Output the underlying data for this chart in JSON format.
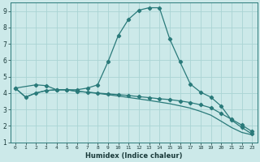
{
  "xlabel": "Humidex (Indice chaleur)",
  "bg_color": "#cce9e9",
  "grid_color": "#aad4d4",
  "line_color": "#2a7a7a",
  "xlim": [
    -0.5,
    23.5
  ],
  "ylim": [
    1,
    9.5
  ],
  "yticks": [
    1,
    2,
    3,
    4,
    5,
    6,
    7,
    8,
    9
  ],
  "xticks": [
    0,
    1,
    2,
    3,
    4,
    5,
    6,
    7,
    8,
    9,
    10,
    11,
    12,
    13,
    14,
    15,
    16,
    17,
    18,
    19,
    20,
    21,
    22,
    23
  ],
  "s1_x": [
    0,
    2,
    3,
    4,
    5,
    6,
    7,
    8,
    9,
    10,
    11,
    12,
    13,
    14,
    15,
    16,
    17,
    18,
    19,
    20,
    21,
    22,
    23
  ],
  "s1_y": [
    4.3,
    4.5,
    4.45,
    4.2,
    4.2,
    4.2,
    4.3,
    4.5,
    5.9,
    7.5,
    8.5,
    9.05,
    9.2,
    9.2,
    7.3,
    5.9,
    4.55,
    4.05,
    3.75,
    3.2,
    2.35,
    1.9,
    1.5
  ],
  "s2_x": [
    0,
    1,
    2,
    3,
    4,
    5,
    6,
    7,
    8,
    9,
    10,
    11,
    12,
    13,
    14,
    15,
    16,
    17,
    18,
    19,
    20,
    21,
    22,
    23
  ],
  "s2_y": [
    4.3,
    3.75,
    4.0,
    4.15,
    4.2,
    4.2,
    4.1,
    4.05,
    4.0,
    3.95,
    3.9,
    3.85,
    3.78,
    3.72,
    3.65,
    3.6,
    3.52,
    3.42,
    3.28,
    3.1,
    2.75,
    2.4,
    2.05,
    1.65
  ],
  "s3_x": [
    0,
    1,
    2,
    3,
    4,
    5,
    6,
    7,
    8,
    9,
    10,
    11,
    12,
    13,
    14,
    15,
    16,
    17,
    18,
    19,
    20,
    21,
    22,
    23
  ],
  "s3_y": [
    4.3,
    3.75,
    4.0,
    4.15,
    4.2,
    4.2,
    4.1,
    4.05,
    3.98,
    3.9,
    3.82,
    3.73,
    3.64,
    3.55,
    3.45,
    3.35,
    3.22,
    3.08,
    2.88,
    2.65,
    2.28,
    1.9,
    1.6,
    1.45
  ]
}
